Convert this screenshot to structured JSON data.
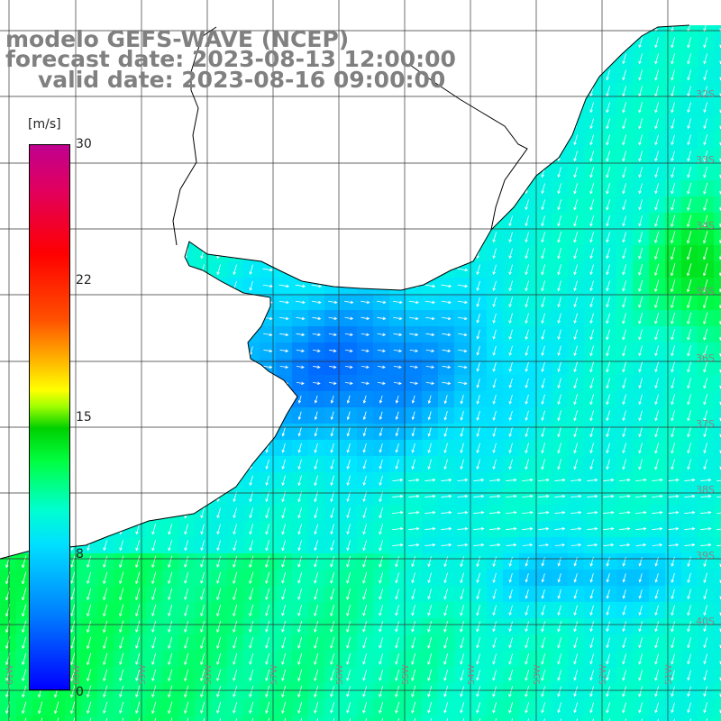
{
  "title": {
    "line1": "modelo GEFS-WAVE (NCEP)",
    "line2": "forecast date: 2023-08-13 12:00:00",
    "line3": "valid date: 2023-08-16 09:00:00"
  },
  "legend": {
    "unit": "[m/s]",
    "ticks": [
      {
        "label": "30",
        "value": 30
      },
      {
        "label": "22",
        "value": 22
      },
      {
        "label": "15",
        "value": 15
      },
      {
        "label": "8",
        "value": 8
      },
      {
        "label": "0",
        "value": 0
      }
    ],
    "colors": [
      "#0000ff",
      "#0080ff",
      "#00e0ff",
      "#00ff40",
      "#00d000",
      "#ffff00",
      "#ff5000",
      "#ff0000",
      "#c0008f"
    ]
  },
  "map": {
    "lat_labels": [
      "32S",
      "33S",
      "34S",
      "35S",
      "36S",
      "37S",
      "38S",
      "39S",
      "40S"
    ],
    "lon_labels": [
      "61W",
      "60W",
      "59W",
      "58W",
      "57W",
      "56W",
      "55W",
      "54W",
      "53W",
      "52W",
      "51W"
    ],
    "land_color": "#ffffff",
    "grid_color": "#333333"
  }
}
